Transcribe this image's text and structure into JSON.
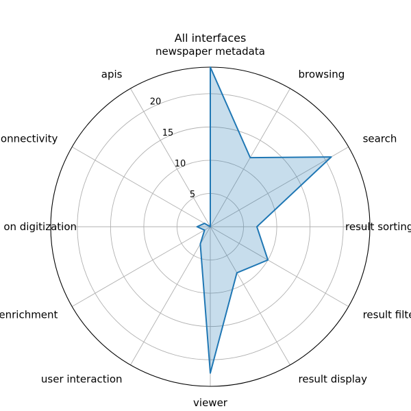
{
  "chart_data": {
    "type": "radar",
    "title": "All interfaces",
    "categories": [
      "newspaper metadata",
      "browsing",
      "search",
      "result sorting",
      "result filtering",
      "result display",
      "viewer",
      "user interaction",
      "enrichment",
      "info on digitization",
      "connectivity",
      "apis"
    ],
    "series": [
      {
        "values": [
          24,
          12,
          21,
          7,
          10,
          8,
          22,
          3,
          1,
          2,
          1,
          0
        ]
      }
    ],
    "rlim": [
      0,
      24
    ],
    "rticks": [
      "5",
      "10",
      "15",
      "20"
    ],
    "grid": true,
    "colors": {
      "series": "#1f77b4",
      "grid": "#b0b0b0",
      "frame": "#000000"
    }
  }
}
